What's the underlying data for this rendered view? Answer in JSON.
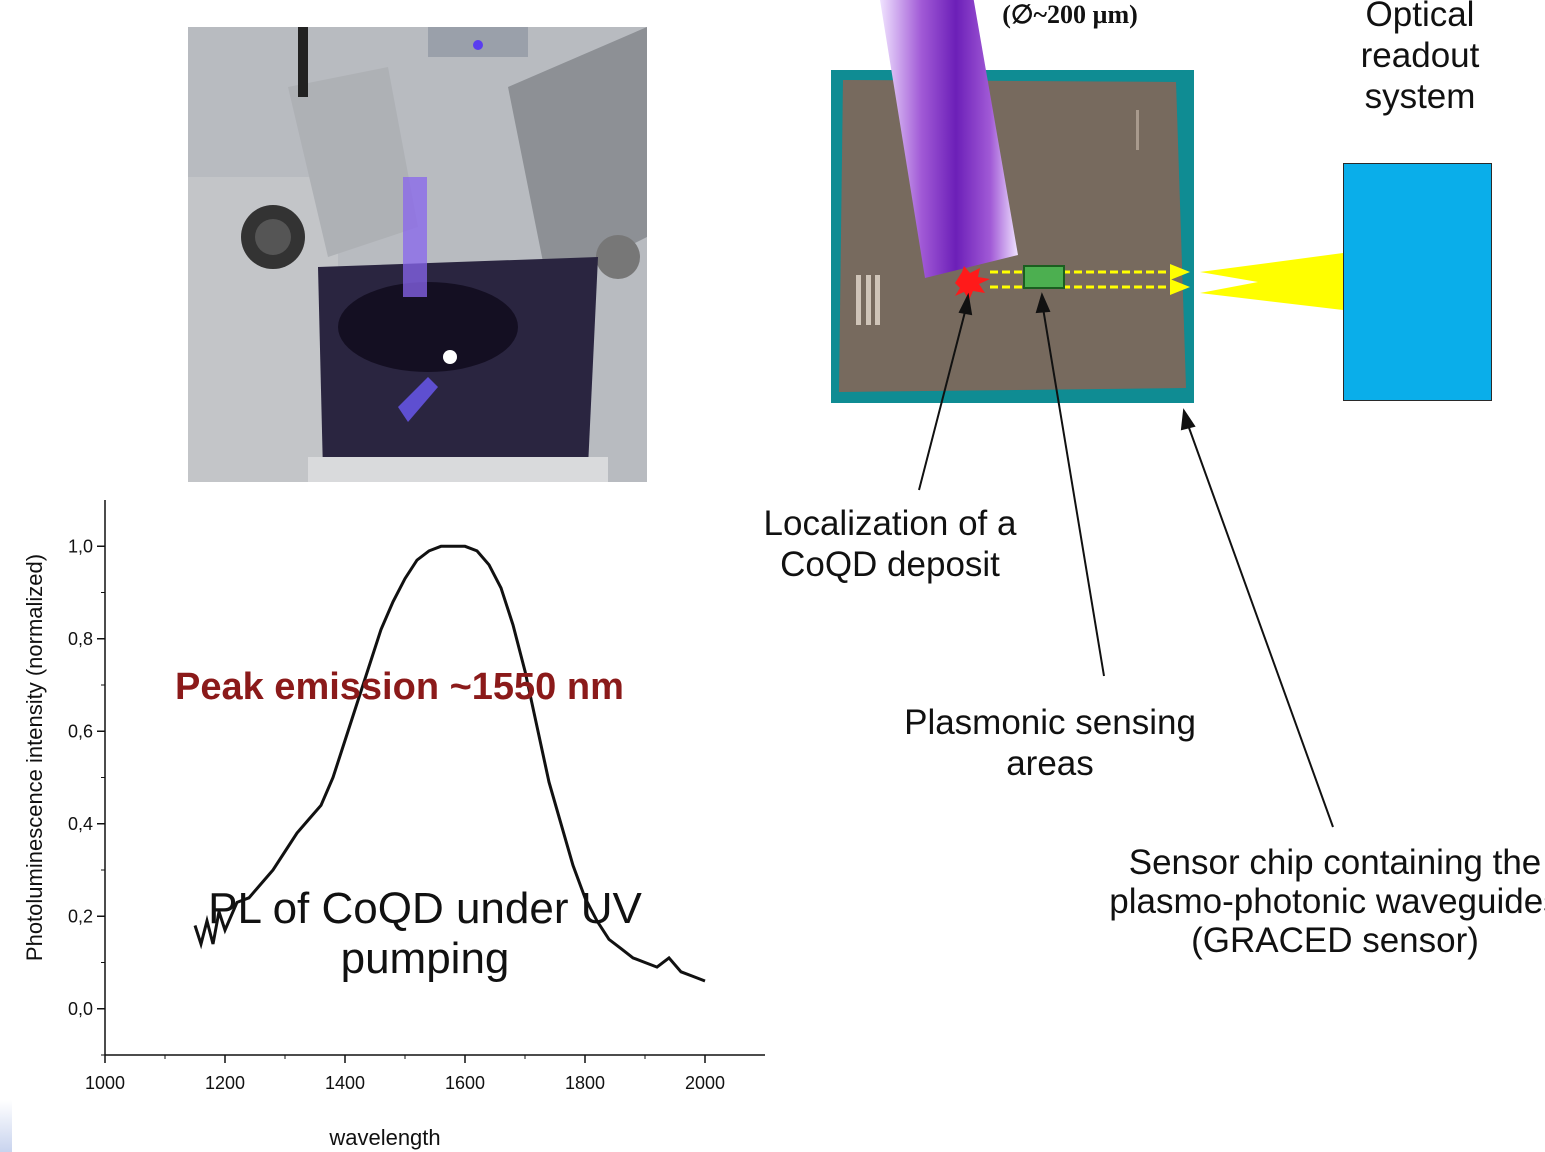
{
  "labels": {
    "readout_title": "Optical readout system",
    "beam_diameter": "(∅~200 µm)",
    "coqd_localization": "Localization of a CoQD deposit",
    "plasmonic_areas": "Plasmonic sensing areas",
    "sensor_chip": "Sensor chip containing the plasmo-photonic waveguides (GRACED sensor)",
    "peak_emission": "Peak emission ~1550 nm",
    "pl_caption": "PL of CoQD under UV pumping"
  },
  "colors": {
    "beam": "#7a2fc4",
    "readout_box": "#0aaeea",
    "light_path": "#ffff00",
    "deposit": "#ff1a1a",
    "sensing_area": "#4caf50",
    "peak_text": "#8b1a1a"
  },
  "icons": {
    "fiber": "uv-fiber-beam",
    "deposit": "red-burst-icon",
    "arrows": "yellow-dashed-arrows"
  },
  "chart_data": {
    "type": "line",
    "xlabel": "wavelength",
    "ylabel": "Photoluminescence intensity (normalized)",
    "xlim": [
      1000,
      2100
    ],
    "ylim": [
      -0.1,
      1.1
    ],
    "xticks": [
      "1000",
      "1200",
      "1400",
      "1600",
      "1800",
      "2000"
    ],
    "yticks": [
      "0,0",
      "0,2",
      "0,4",
      "0,6",
      "0,8",
      "1,0"
    ],
    "series": [
      {
        "x": [
          1150,
          1160,
          1170,
          1180,
          1190,
          1200,
          1220,
          1240,
          1260,
          1280,
          1300,
          1320,
          1340,
          1360,
          1380,
          1400,
          1420,
          1440,
          1460,
          1480,
          1500,
          1520,
          1540,
          1560,
          1580,
          1600,
          1620,
          1640,
          1660,
          1680,
          1700,
          1720,
          1740,
          1760,
          1780,
          1800,
          1820,
          1840,
          1860,
          1880,
          1900,
          1920,
          1940,
          1960,
          1980,
          2000
        ],
        "y": [
          0.18,
          0.14,
          0.19,
          0.14,
          0.21,
          0.17,
          0.23,
          0.24,
          0.27,
          0.3,
          0.34,
          0.38,
          0.41,
          0.44,
          0.5,
          0.58,
          0.66,
          0.74,
          0.82,
          0.88,
          0.93,
          0.97,
          0.99,
          1.0,
          1.0,
          1.0,
          0.99,
          0.96,
          0.91,
          0.83,
          0.73,
          0.61,
          0.49,
          0.4,
          0.31,
          0.24,
          0.19,
          0.15,
          0.13,
          0.11,
          0.1,
          0.09,
          0.11,
          0.08,
          0.07,
          0.06
        ]
      }
    ]
  }
}
